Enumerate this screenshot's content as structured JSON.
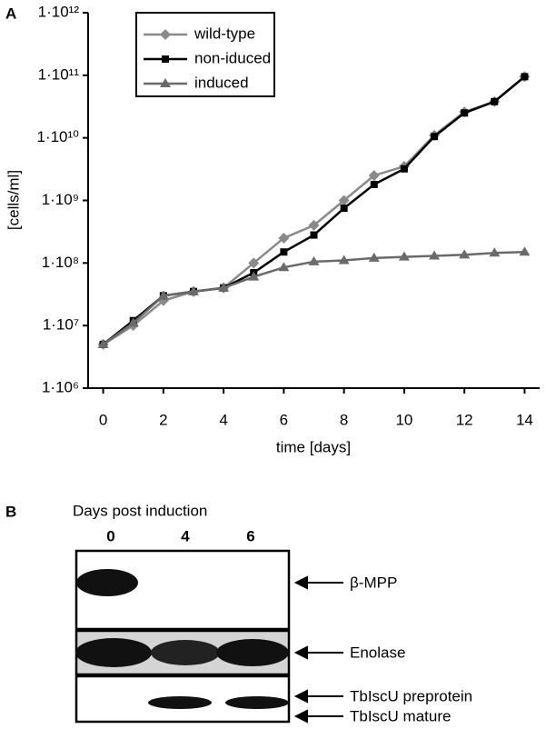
{
  "chart_data": {
    "type": "line",
    "panel_label": "A",
    "x_label": "time [days]",
    "y_label": "[cells/ml]",
    "x": [
      0,
      1,
      2,
      3,
      4,
      5,
      6,
      7,
      8,
      9,
      10,
      11,
      12,
      13,
      14
    ],
    "series": [
      {
        "name": "wild-type",
        "color": "#8a8a8a",
        "marker": "diamond",
        "values": [
          5000000,
          10000000,
          25000000,
          35000000,
          40000000,
          100000000,
          250000000,
          400000000,
          1000000000,
          2500000000,
          3500000000,
          11000000000,
          26000000000,
          38000000000,
          95000000000
        ]
      },
      {
        "name": "non-iduced",
        "color": "#000000",
        "marker": "square",
        "values": [
          5000000,
          12000000,
          30000000,
          35000000,
          40000000,
          70000000,
          150000000,
          280000000,
          750000000,
          1800000000,
          3200000000,
          10500000000,
          25000000000,
          38000000000,
          95000000000
        ]
      },
      {
        "name": "induced",
        "color": "#6a6a6a",
        "marker": "triangle",
        "values": [
          5000000,
          11000000,
          30000000,
          35000000,
          40000000,
          60000000,
          85000000,
          105000000,
          110000000,
          120000000,
          125000000,
          130000000,
          135000000,
          145000000,
          150000000
        ]
      }
    ],
    "xlim": [
      -0.5,
      14.5
    ],
    "xticks": [
      0,
      2,
      4,
      6,
      8,
      10,
      12,
      14
    ],
    "ylim": [
      1000000,
      1000000000000
    ],
    "ylog": true,
    "yticks": [
      {
        "value": 1000000,
        "label": "1·10⁶"
      },
      {
        "value": 10000000,
        "label": "1·10⁷"
      },
      {
        "value": 100000000,
        "label": "1·10⁸"
      },
      {
        "value": 1000000000,
        "label": "1·10⁹"
      },
      {
        "value": 10000000000,
        "label": "1·10¹⁰"
      },
      {
        "value": 100000000000,
        "label": "1·10¹¹"
      },
      {
        "value": 1000000000000,
        "label": "1·10¹²"
      }
    ],
    "grid": false,
    "legend": "upper left"
  },
  "blot": {
    "panel_label": "B",
    "title": "Days post induction",
    "lanes": [
      "0",
      "4",
      "6"
    ],
    "bands": [
      "β-MPP",
      "Enolase",
      "TbIscU preprotein",
      "TbIscU mature"
    ]
  }
}
